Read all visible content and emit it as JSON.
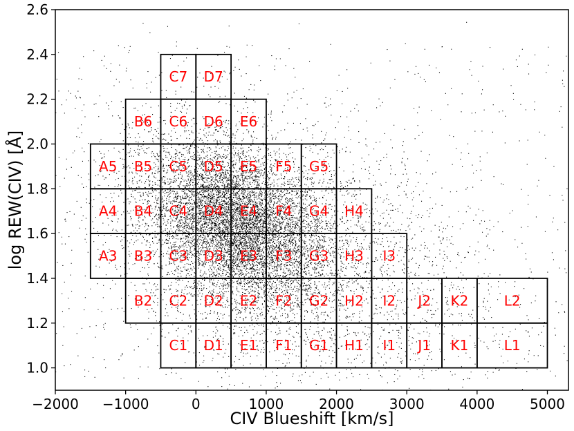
{
  "chart_data": {
    "type": "scatter",
    "xlabel": "CIV Blueshift [km/s]",
    "ylabel": "log REW(CIV) [Å]",
    "xlim": [
      -2000,
      5300
    ],
    "ylim": [
      0.9,
      2.6
    ],
    "x_ticks": [
      -2000,
      -1000,
      0,
      1000,
      2000,
      3000,
      4000,
      5000
    ],
    "y_ticks": [
      1.0,
      1.2,
      1.4,
      1.6,
      1.8,
      2.0,
      2.2,
      2.4,
      2.6
    ],
    "x_tick_labels": [
      "−2000",
      "−1000",
      "0",
      "1000",
      "2000",
      "3000",
      "4000",
      "5000"
    ],
    "y_tick_labels": [
      "1.0",
      "1.2",
      "1.4",
      "1.6",
      "1.8",
      "2.0",
      "2.2",
      "2.4",
      "2.6"
    ],
    "point_color": "#000000",
    "label_color": "#ff0000",
    "density_model": {
      "core": {
        "x_mean": 600,
        "y_mean": 1.64,
        "x_sd": 650,
        "y_sd": 0.17,
        "count": 9000,
        "correlation": -0.35
      },
      "halo": {
        "x_mean": 900,
        "y_mean": 1.55,
        "x_sd": 1400,
        "y_sd": 0.3,
        "count": 4500
      },
      "uniform": {
        "count": 700
      }
    },
    "bins": [
      {
        "label": "C7",
        "x": [
          -500,
          0
        ],
        "y": [
          2.2,
          2.4
        ]
      },
      {
        "label": "D7",
        "x": [
          0,
          500
        ],
        "y": [
          2.2,
          2.4
        ]
      },
      {
        "label": "B6",
        "x": [
          -1000,
          -500
        ],
        "y": [
          2.0,
          2.2
        ]
      },
      {
        "label": "C6",
        "x": [
          -500,
          0
        ],
        "y": [
          2.0,
          2.2
        ]
      },
      {
        "label": "D6",
        "x": [
          0,
          500
        ],
        "y": [
          2.0,
          2.2
        ]
      },
      {
        "label": "E6",
        "x": [
          500,
          1000
        ],
        "y": [
          2.0,
          2.2
        ]
      },
      {
        "label": "A5",
        "x": [
          -1500,
          -1000
        ],
        "y": [
          1.8,
          2.0
        ]
      },
      {
        "label": "B5",
        "x": [
          -1000,
          -500
        ],
        "y": [
          1.8,
          2.0
        ]
      },
      {
        "label": "C5",
        "x": [
          -500,
          0
        ],
        "y": [
          1.8,
          2.0
        ]
      },
      {
        "label": "D5",
        "x": [
          0,
          500
        ],
        "y": [
          1.8,
          2.0
        ]
      },
      {
        "label": "E5",
        "x": [
          500,
          1000
        ],
        "y": [
          1.8,
          2.0
        ]
      },
      {
        "label": "F5",
        "x": [
          1000,
          1500
        ],
        "y": [
          1.8,
          2.0
        ]
      },
      {
        "label": "G5",
        "x": [
          1500,
          2000
        ],
        "y": [
          1.8,
          2.0
        ]
      },
      {
        "label": "A4",
        "x": [
          -1500,
          -1000
        ],
        "y": [
          1.6,
          1.8
        ]
      },
      {
        "label": "B4",
        "x": [
          -1000,
          -500
        ],
        "y": [
          1.6,
          1.8
        ]
      },
      {
        "label": "C4",
        "x": [
          -500,
          0
        ],
        "y": [
          1.6,
          1.8
        ]
      },
      {
        "label": "D4",
        "x": [
          0,
          500
        ],
        "y": [
          1.6,
          1.8
        ]
      },
      {
        "label": "E4",
        "x": [
          500,
          1000
        ],
        "y": [
          1.6,
          1.8
        ]
      },
      {
        "label": "F4",
        "x": [
          1000,
          1500
        ],
        "y": [
          1.6,
          1.8
        ]
      },
      {
        "label": "G4",
        "x": [
          1500,
          2000
        ],
        "y": [
          1.6,
          1.8
        ]
      },
      {
        "label": "H4",
        "x": [
          2000,
          2500
        ],
        "y": [
          1.6,
          1.8
        ]
      },
      {
        "label": "A3",
        "x": [
          -1500,
          -1000
        ],
        "y": [
          1.4,
          1.6
        ]
      },
      {
        "label": "B3",
        "x": [
          -1000,
          -500
        ],
        "y": [
          1.4,
          1.6
        ]
      },
      {
        "label": "C3",
        "x": [
          -500,
          0
        ],
        "y": [
          1.4,
          1.6
        ]
      },
      {
        "label": "D3",
        "x": [
          0,
          500
        ],
        "y": [
          1.4,
          1.6
        ]
      },
      {
        "label": "E3",
        "x": [
          500,
          1000
        ],
        "y": [
          1.4,
          1.6
        ]
      },
      {
        "label": "F3",
        "x": [
          1000,
          1500
        ],
        "y": [
          1.4,
          1.6
        ]
      },
      {
        "label": "G3",
        "x": [
          1500,
          2000
        ],
        "y": [
          1.4,
          1.6
        ]
      },
      {
        "label": "H3",
        "x": [
          2000,
          2500
        ],
        "y": [
          1.4,
          1.6
        ]
      },
      {
        "label": "I3",
        "x": [
          2500,
          3000
        ],
        "y": [
          1.4,
          1.6
        ]
      },
      {
        "label": "B2",
        "x": [
          -1000,
          -500
        ],
        "y": [
          1.2,
          1.4
        ]
      },
      {
        "label": "C2",
        "x": [
          -500,
          0
        ],
        "y": [
          1.2,
          1.4
        ]
      },
      {
        "label": "D2",
        "x": [
          0,
          500
        ],
        "y": [
          1.2,
          1.4
        ]
      },
      {
        "label": "E2",
        "x": [
          500,
          1000
        ],
        "y": [
          1.2,
          1.4
        ]
      },
      {
        "label": "F2",
        "x": [
          1000,
          1500
        ],
        "y": [
          1.2,
          1.4
        ]
      },
      {
        "label": "G2",
        "x": [
          1500,
          2000
        ],
        "y": [
          1.2,
          1.4
        ]
      },
      {
        "label": "H2",
        "x": [
          2000,
          2500
        ],
        "y": [
          1.2,
          1.4
        ]
      },
      {
        "label": "I2",
        "x": [
          2500,
          3000
        ],
        "y": [
          1.2,
          1.4
        ]
      },
      {
        "label": "J2",
        "x": [
          3000,
          3500
        ],
        "y": [
          1.2,
          1.4
        ]
      },
      {
        "label": "K2",
        "x": [
          3500,
          4000
        ],
        "y": [
          1.2,
          1.4
        ]
      },
      {
        "label": "L2",
        "x": [
          4000,
          5000
        ],
        "y": [
          1.2,
          1.4
        ]
      },
      {
        "label": "C1",
        "x": [
          -500,
          0
        ],
        "y": [
          1.0,
          1.2
        ]
      },
      {
        "label": "D1",
        "x": [
          0,
          500
        ],
        "y": [
          1.0,
          1.2
        ]
      },
      {
        "label": "E1",
        "x": [
          500,
          1000
        ],
        "y": [
          1.0,
          1.2
        ]
      },
      {
        "label": "F1",
        "x": [
          1000,
          1500
        ],
        "y": [
          1.0,
          1.2
        ]
      },
      {
        "label": "G1",
        "x": [
          1500,
          2000
        ],
        "y": [
          1.0,
          1.2
        ]
      },
      {
        "label": "H1",
        "x": [
          2000,
          2500
        ],
        "y": [
          1.0,
          1.2
        ]
      },
      {
        "label": "I1",
        "x": [
          2500,
          3000
        ],
        "y": [
          1.0,
          1.2
        ]
      },
      {
        "label": "J1",
        "x": [
          3000,
          3500
        ],
        "y": [
          1.0,
          1.2
        ]
      },
      {
        "label": "K1",
        "x": [
          3500,
          4000
        ],
        "y": [
          1.0,
          1.2
        ]
      },
      {
        "label": "L1",
        "x": [
          4000,
          5000
        ],
        "y": [
          1.0,
          1.2
        ]
      }
    ]
  }
}
